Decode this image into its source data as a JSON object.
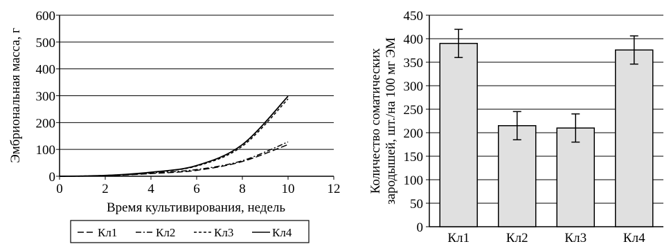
{
  "chart_data": [
    {
      "type": "line",
      "xlabel": "Время культивирования, недель",
      "ylabel": "Эмбриональная масса, г",
      "xlim": [
        0,
        12
      ],
      "ylim": [
        0,
        600
      ],
      "xticks": [
        "0",
        "2",
        "4",
        "6",
        "8",
        "10",
        "12"
      ],
      "yticks": [
        "0",
        "100",
        "200",
        "300",
        "400",
        "500",
        "600"
      ],
      "grid": "horizontal",
      "legend_position": "bottom",
      "series": [
        {
          "name": "Кл1",
          "style": "long-dash",
          "x": [
            0,
            2,
            4,
            6,
            8,
            10
          ],
          "y": [
            0,
            2,
            10,
            22,
            55,
            118
          ]
        },
        {
          "name": "Кл2",
          "style": "dash-dot",
          "x": [
            0,
            2,
            4,
            6,
            8,
            10
          ],
          "y": [
            0,
            2,
            12,
            25,
            58,
            128
          ]
        },
        {
          "name": "Кл3",
          "style": "short-dash",
          "x": [
            0,
            2,
            4,
            6,
            8,
            10
          ],
          "y": [
            0,
            3,
            14,
            38,
            112,
            288
          ]
        },
        {
          "name": "Кл4",
          "style": "solid",
          "x": [
            0,
            2,
            4,
            6,
            8,
            10
          ],
          "y": [
            0,
            3,
            15,
            40,
            118,
            298
          ]
        }
      ]
    },
    {
      "type": "bar",
      "ylabel_line1": "Количество соматических",
      "ylabel_line2": "зародышей, шт./на 100 мг ЭМ",
      "ylim": [
        0,
        450
      ],
      "yticks": [
        "0",
        "50",
        "100",
        "150",
        "200",
        "250",
        "300",
        "350",
        "400",
        "450"
      ],
      "grid": "horizontal",
      "categories": [
        "Кл1",
        "Кл2",
        "Кл3",
        "Кл4"
      ],
      "values": [
        390,
        215,
        210,
        376
      ],
      "errors": [
        30,
        30,
        30,
        30
      ],
      "bar_color": "#e0e0e0"
    }
  ]
}
